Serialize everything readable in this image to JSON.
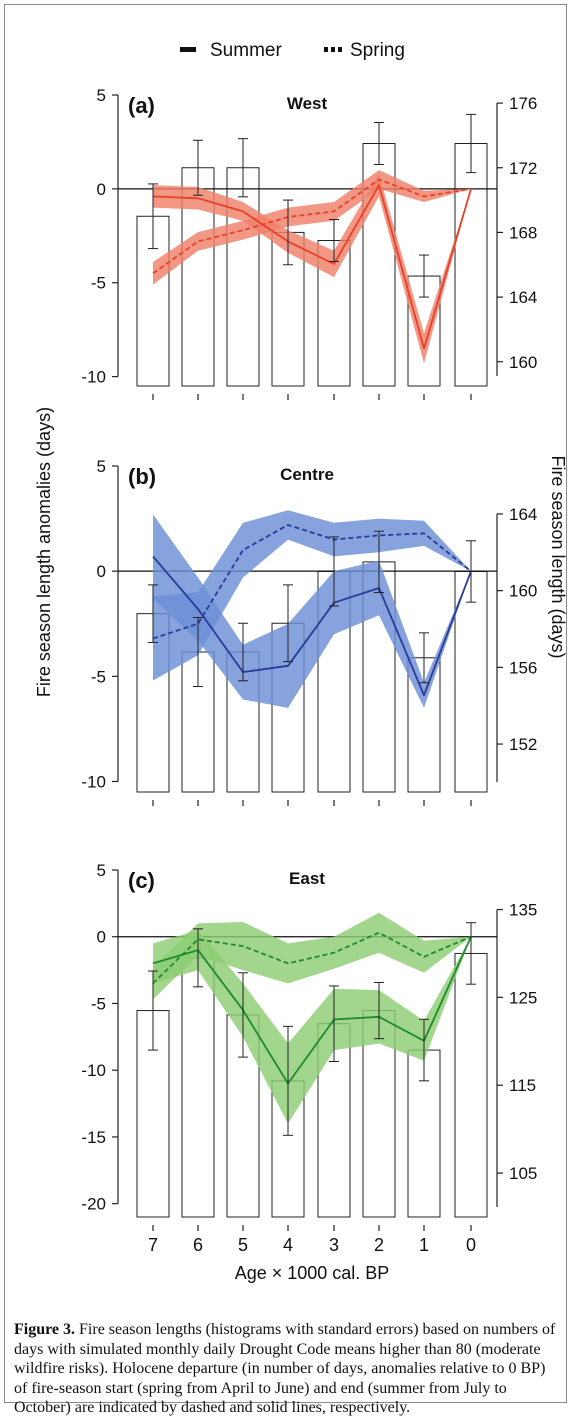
{
  "legend": {
    "summer": "Summer",
    "spring": "Spring"
  },
  "left_axis_label": "Fire season length anomalies (days)",
  "right_axis_label": "Fire season length (days)",
  "x_axis_label": "Age × 1000 cal. BP",
  "caption": {
    "figure_label": "Figure 3.",
    "text": " Fire season lengths (histograms with standard errors) based on numbers of days with simulated monthly daily Drought Code means higher than 80 (moderate wildfire risks). Holocene departure (in number of days, anomalies relative to 0 BP) of fire-season start (spring from April to June) and end (summer from July to October) are indicated by dashed and solid lines, respectively."
  },
  "chart_data": [
    {
      "type": "bar+line",
      "panel_label": "(a)",
      "title": "West",
      "color": "#e8412b",
      "band_color": "#f0806a",
      "x": [
        7,
        6,
        5,
        4,
        3,
        2,
        1,
        0
      ],
      "left_ylim": [
        -10.5,
        5
      ],
      "left_ticks": [
        5,
        0,
        -5,
        -10
      ],
      "right_ylim": [
        158.5,
        176.5
      ],
      "right_ticks": [
        176,
        172,
        168,
        164,
        160
      ],
      "bars": {
        "values": [
          169,
          172,
          172,
          168,
          167.5,
          173.5,
          165.3,
          173.5
        ],
        "errors": [
          2.0,
          1.7,
          1.8,
          2.0,
          1.3,
          1.3,
          1.3,
          1.8
        ]
      },
      "series": [
        {
          "name": "Summer",
          "style": "solid",
          "values": [
            -0.4,
            -0.5,
            -1.2,
            -2.8,
            -4.0,
            0.2,
            -8.5,
            0.0
          ],
          "band": [
            0.6,
            0.6,
            0.5,
            0.6,
            0.7,
            0.6,
            0.8,
            0.0
          ]
        },
        {
          "name": "Spring",
          "style": "dashed",
          "values": [
            -4.5,
            -2.8,
            -2.2,
            -1.5,
            -1.2,
            0.5,
            -0.4,
            0.0
          ],
          "band": [
            0.6,
            0.5,
            0.5,
            0.5,
            0.5,
            0.5,
            0.3,
            0.0
          ]
        }
      ]
    },
    {
      "type": "bar+line",
      "panel_label": "(b)",
      "title": "Centre",
      "color": "#2b3a9a",
      "band_color": "#6b8fd6",
      "x": [
        7,
        6,
        5,
        4,
        3,
        2,
        1,
        0
      ],
      "left_ylim": [
        -10.5,
        5
      ],
      "left_ticks": [
        5,
        0,
        -5,
        -10
      ],
      "right_ylim": [
        149.5,
        166.5
      ],
      "right_ticks": [
        164,
        160,
        156,
        152
      ],
      "bars": {
        "values": [
          158.8,
          156.8,
          156.8,
          158.3,
          161,
          161.5,
          156.5,
          161
        ],
        "errors": [
          1.5,
          1.8,
          1.5,
          2.0,
          1.8,
          1.6,
          1.3,
          1.6
        ]
      },
      "series": [
        {
          "name": "Summer",
          "style": "solid",
          "values": [
            0.7,
            -1.8,
            -4.8,
            -4.5,
            -1.5,
            -0.8,
            -5.9,
            0.0
          ],
          "band": [
            2.0,
            1.5,
            1.3,
            2.0,
            1.5,
            1.3,
            0.6,
            0.0
          ]
        },
        {
          "name": "Spring",
          "style": "dashed",
          "values": [
            -3.2,
            -2.5,
            1.0,
            2.2,
            1.5,
            1.7,
            1.8,
            0.0
          ],
          "band": [
            2.0,
            1.5,
            1.3,
            0.7,
            0.8,
            0.8,
            0.6,
            0.0
          ]
        }
      ]
    },
    {
      "type": "bar+line",
      "panel_label": "(c)",
      "title": "East",
      "color": "#1d8b2f",
      "band_color": "#8ccd73",
      "x": [
        7,
        6,
        5,
        4,
        3,
        2,
        1,
        0
      ],
      "left_ylim": [
        -21,
        5
      ],
      "left_ticks": [
        5,
        0,
        -5,
        -10,
        -15,
        -20
      ],
      "right_ylim": [
        100,
        139.5
      ],
      "right_ticks": [
        135,
        125,
        115,
        105
      ],
      "bars": {
        "values": [
          123.5,
          129.5,
          123,
          115.5,
          122,
          123.5,
          119,
          130
        ],
        "errors": [
          4.5,
          3.3,
          4.8,
          6.2,
          4.3,
          3.2,
          3.5,
          3.5
        ]
      },
      "series": [
        {
          "name": "Summer",
          "style": "solid",
          "values": [
            -2.0,
            -1.0,
            -5.5,
            -11.0,
            -6.2,
            -6.0,
            -7.8,
            0.0
          ],
          "band": [
            1.5,
            1.5,
            2.0,
            3.0,
            2.3,
            2.0,
            1.5,
            0.0
          ]
        },
        {
          "name": "Spring",
          "style": "dashed",
          "values": [
            -3.5,
            -0.2,
            -0.7,
            -2.0,
            -1.2,
            0.3,
            -1.5,
            0.0
          ],
          "band": [
            1.2,
            1.2,
            1.8,
            1.5,
            1.2,
            1.5,
            1.2,
            0.0
          ]
        }
      ]
    }
  ]
}
